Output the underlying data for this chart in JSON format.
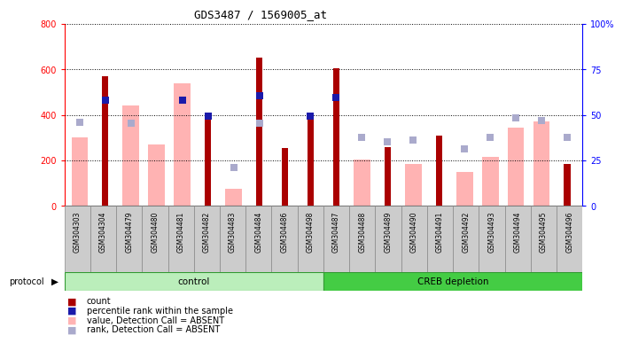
{
  "title": "GDS3487 / 1569005_at",
  "samples": [
    "GSM304303",
    "GSM304304",
    "GSM304479",
    "GSM304480",
    "GSM304481",
    "GSM304482",
    "GSM304483",
    "GSM304484",
    "GSM304486",
    "GSM304498",
    "GSM304487",
    "GSM304488",
    "GSM304489",
    "GSM304490",
    "GSM304491",
    "GSM304492",
    "GSM304493",
    "GSM304494",
    "GSM304495",
    "GSM304496"
  ],
  "count": [
    null,
    570,
    null,
    null,
    null,
    380,
    null,
    650,
    255,
    390,
    605,
    null,
    258,
    null,
    310,
    null,
    null,
    null,
    null,
    185
  ],
  "percentile": [
    null,
    465,
    null,
    null,
    465,
    395,
    null,
    485,
    null,
    395,
    475,
    null,
    null,
    null,
    null,
    null,
    null,
    null,
    null,
    null
  ],
  "value_absent": [
    300,
    null,
    440,
    268,
    538,
    null,
    75,
    null,
    null,
    null,
    null,
    205,
    null,
    182,
    null,
    150,
    215,
    345,
    370,
    null
  ],
  "rank_absent": [
    365,
    null,
    362,
    null,
    null,
    null,
    168,
    362,
    null,
    null,
    null,
    300,
    282,
    288,
    null,
    250,
    300,
    385,
    375,
    null
  ],
  "rank_absent_extra": [
    null,
    null,
    null,
    null,
    null,
    null,
    null,
    null,
    null,
    null,
    null,
    null,
    null,
    null,
    null,
    null,
    null,
    null,
    null,
    300
  ],
  "control_count": 10,
  "ylim_left": [
    0,
    800
  ],
  "ylim_right": [
    0,
    100
  ],
  "yticks_left": [
    0,
    200,
    400,
    600,
    800
  ],
  "yticks_right": [
    0,
    25,
    50,
    75,
    100
  ],
  "ytick_labels_right": [
    "0",
    "25",
    "50",
    "75",
    "100%"
  ],
  "count_color": "#aa0000",
  "percentile_color": "#1a1aaa",
  "value_absent_color": "#ffb3b3",
  "rank_absent_color": "#aaaacc",
  "control_bg": "#bbeebb",
  "creb_bg": "#44cc44",
  "xtick_bg": "#cccccc",
  "legend_labels": [
    "count",
    "percentile rank within the sample",
    "value, Detection Call = ABSENT",
    "rank, Detection Call = ABSENT"
  ]
}
